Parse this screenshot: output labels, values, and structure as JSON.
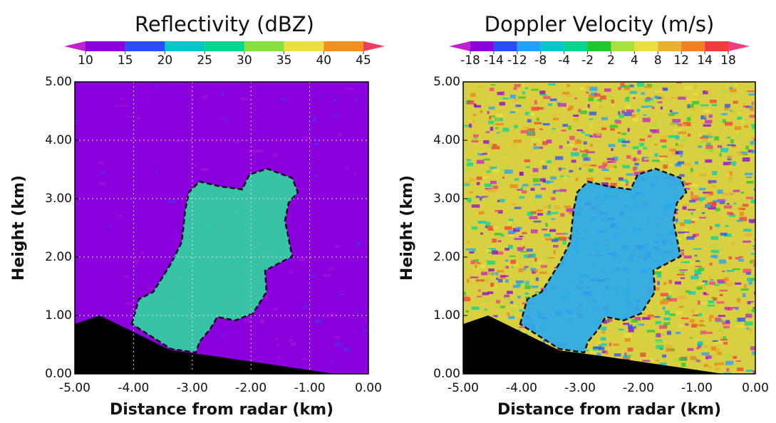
{
  "chart_data": [
    {
      "type": "radar-section",
      "title": "Reflectivity (dBZ)",
      "colorbar": {
        "ticks": [
          10,
          15,
          20,
          25,
          30,
          35,
          40,
          45
        ],
        "colors": [
          "#c020d0",
          "#8a00dc",
          "#2a4cff",
          "#00c8c8",
          "#00d890",
          "#88e040",
          "#e8e040",
          "#f09020",
          "#f03c60"
        ]
      },
      "field_color": "#8a00dc",
      "echo_color": "#30d8a0",
      "grid": true,
      "xlabel": "Distance from radar (km)",
      "ylabel": "Height (km)",
      "xlim": [
        -5,
        0
      ],
      "ylim": [
        0,
        5
      ],
      "xticks": [
        {
          "value": -5,
          "label": "-5.00"
        },
        {
          "value": -4,
          "label": "-4.00"
        },
        {
          "value": -3,
          "label": "-3.00"
        },
        {
          "value": -2,
          "label": "-2.00"
        },
        {
          "value": -1,
          "label": "-1.00"
        },
        {
          "value": 0,
          "label": "0.00"
        }
      ],
      "yticks": [
        {
          "value": 0,
          "label": "0.00"
        },
        {
          "value": 1,
          "label": "1.00"
        },
        {
          "value": 2,
          "label": "2.00"
        },
        {
          "value": 3,
          "label": "3.00"
        },
        {
          "value": 4,
          "label": "4.00"
        },
        {
          "value": 5,
          "label": "5.00"
        }
      ]
    },
    {
      "type": "radar-section",
      "title": "Doppler Velocity (m/s)",
      "colorbar": {
        "ticks": [
          -18,
          -14,
          -12,
          -8,
          -4,
          -2,
          2,
          4,
          8,
          12,
          14,
          18
        ],
        "colors": [
          "#c020d0",
          "#8a00dc",
          "#2a4cff",
          "#20a0ff",
          "#00c8c8",
          "#00d890",
          "#20c830",
          "#a8e040",
          "#e8e040",
          "#e8b030",
          "#f08020",
          "#f03c3c",
          "#f03c80"
        ]
      },
      "field_color": "#d8d040",
      "echo_color": "#28a8f0",
      "grid": false,
      "xlabel": "Distance from radar (km)",
      "ylabel": "Height (km)",
      "xlim": [
        -5,
        0
      ],
      "ylim": [
        0,
        5
      ],
      "xticks": [
        {
          "value": -5,
          "label": "-5.00"
        },
        {
          "value": -4,
          "label": "-4.00"
        },
        {
          "value": -3,
          "label": "-3.00"
        },
        {
          "value": -2,
          "label": "-2.00"
        },
        {
          "value": -1,
          "label": "-1.00"
        },
        {
          "value": 0,
          "label": "0.00"
        }
      ],
      "yticks": [
        {
          "value": 0,
          "label": "0.00"
        },
        {
          "value": 1,
          "label": "1.00"
        },
        {
          "value": 2,
          "label": "2.00"
        },
        {
          "value": 3,
          "label": "3.00"
        },
        {
          "value": 4,
          "label": "4.00"
        },
        {
          "value": 5,
          "label": "5.00"
        }
      ]
    }
  ]
}
